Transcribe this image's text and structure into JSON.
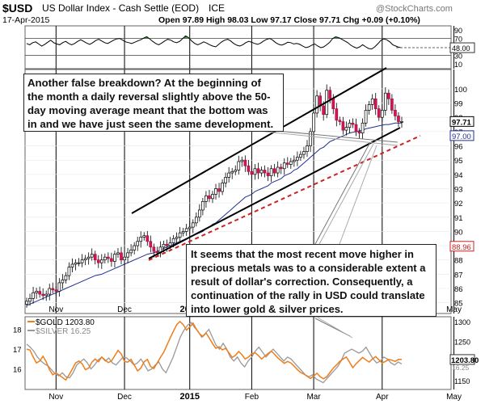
{
  "header": {
    "symbol": "$USD",
    "name": "US Dollar Index - Cash Settle (EOD)",
    "exchange": "ICE",
    "date": "17-Apr-2015",
    "ohlc_line": "Open 97.89  High 98.03  Low 97.17  Close 97.71  Chg +0.09 (+0.10%)",
    "watermark": "@StockCharts.com"
  },
  "annotations": {
    "top": "Another false breakdown? At the beginning of the month a daily reversal slightly above the 50-day moving average meant that the bottom was in and we have just seen the same development.",
    "bottom": "It seems that the most recent move higher in precious metals was to a considerable extent a result of dollar's correction. Consequently, a continuation of the rally in USD could translate into lower gold & silver prices."
  },
  "chart_data": [
    {
      "type": "line",
      "panel": "RSI",
      "ylim": [
        0,
        100
      ],
      "ticks": [
        10,
        30,
        70,
        90
      ],
      "last_value_label": "48.00",
      "levels": [
        30,
        70
      ],
      "values": [
        58,
        55,
        60,
        62,
        57,
        52,
        56,
        61,
        66,
        60,
        57,
        55,
        60,
        63,
        58,
        55,
        58,
        63,
        67,
        63,
        59,
        56,
        60,
        65,
        68,
        64,
        60,
        58,
        62,
        66,
        69,
        70,
        66,
        62,
        60,
        58,
        61,
        64,
        67,
        71,
        74,
        69,
        63,
        58,
        55,
        59,
        64,
        68,
        66,
        62,
        60,
        63,
        70,
        76,
        72,
        64,
        58,
        55,
        58,
        62,
        59,
        55,
        52,
        50,
        56,
        62,
        66,
        68,
        64,
        58,
        54,
        52,
        55,
        60,
        63,
        61,
        58,
        56,
        59,
        64,
        68,
        70,
        66,
        60,
        56,
        54,
        57,
        61,
        60,
        57,
        58,
        56,
        52,
        48,
        50,
        54,
        57,
        52,
        48,
        50,
        55,
        61,
        70,
        74,
        72,
        68,
        64,
        60,
        54,
        50,
        47,
        50,
        55,
        50,
        46,
        45,
        50,
        57,
        65,
        69,
        67,
        62,
        55,
        52,
        49,
        48
      ]
    },
    {
      "type": "candlestick",
      "panel": "price",
      "title": "$USD US Dollar Index - Cash Settle (EOD) ICE",
      "ylim": [
        84.3,
        101.3
      ],
      "y_ticks": [
        85,
        86,
        87,
        88,
        89,
        90,
        91,
        92,
        93,
        94,
        95,
        96,
        97,
        98,
        99,
        100
      ],
      "x_tick_labels": [
        "Nov",
        "Dec",
        "2015",
        "Feb",
        "Mar",
        "Apr",
        "May"
      ],
      "price_labels": [
        "97.71",
        "97.00",
        "88.96"
      ],
      "close": [
        85.1,
        85.3,
        85.7,
        85.8,
        85.6,
        85.5,
        85.6,
        86.0,
        85.9,
        85.8,
        86.4,
        86.6,
        86.9,
        87.5,
        87.7,
        87.8,
        87.8,
        88.0,
        88.1,
        88.2,
        88.4,
        88.0,
        87.8,
        88.0,
        88.2,
        88.1,
        87.9,
        88.4,
        88.5,
        88.0,
        88.2,
        88.5,
        88.7,
        89.0,
        89.3,
        89.6,
        89.7,
        89.3,
        88.9,
        88.6,
        88.5,
        88.9,
        89.1,
        89.0,
        89.2,
        89.5,
        89.6,
        89.9,
        90.0,
        90.2,
        90.3,
        90.6,
        91.0,
        91.5,
        92.1,
        92.5,
        92.3,
        92.6,
        93.0,
        92.8,
        93.4,
        93.8,
        94.1,
        94.2,
        94.3,
        94.9,
        95.0,
        94.6,
        94.2,
        94.0,
        94.4,
        94.1,
        94.3,
        94.1,
        93.9,
        94.4,
        94.1,
        94.5,
        94.4,
        94.8,
        94.7,
        94.9,
        95.0,
        95.2,
        95.4,
        95.6,
        96.0,
        97.0,
        98.3,
        99.5,
        98.8,
        98.2,
        99.9,
        99.3,
        98.6,
        97.8,
        97.7,
        97.1,
        97.3,
        97.6,
        97.5,
        97.0,
        96.9,
        97.6,
        98.5,
        98.9,
        99.3,
        98.6,
        98.0,
        98.5,
        99.7,
        99.3,
        98.5,
        98.1,
        97.7,
        97.71
      ],
      "series": [
        {
          "name": "MA(50)",
          "values": [
            84.8,
            84.9,
            85.0,
            85.1,
            85.2,
            85.3,
            85.4,
            85.5,
            85.6,
            85.7,
            85.8,
            85.9,
            86.0,
            86.1,
            86.2,
            86.3,
            86.4,
            86.5,
            86.6,
            86.7,
            86.8,
            86.9,
            86.95,
            87.0,
            87.1,
            87.2,
            87.3,
            87.4,
            87.5,
            87.6,
            87.7,
            87.8,
            87.9,
            88.0,
            88.1,
            88.2,
            88.3,
            88.4,
            88.45,
            88.5,
            88.6,
            88.7,
            88.8,
            88.9,
            89.0,
            89.1,
            89.2,
            89.3,
            89.4,
            89.5,
            89.6,
            89.7,
            89.8,
            89.9,
            90.0,
            90.2,
            90.3,
            90.5,
            90.6,
            90.8,
            91.0,
            91.2,
            91.4,
            91.6,
            91.8,
            92.0,
            92.2,
            92.4,
            92.5,
            92.6,
            92.8,
            92.9,
            93.0,
            93.1,
            93.2,
            93.4,
            93.5,
            93.6,
            93.7,
            93.9,
            94.0,
            94.1,
            94.3,
            94.4,
            94.6,
            94.8,
            95.0,
            95.2,
            95.4,
            95.6,
            95.8,
            95.9,
            96.1,
            96.3,
            96.4,
            96.5,
            96.6,
            96.7,
            96.8,
            96.9,
            96.95,
            97.0,
            97.05,
            97.1,
            97.2,
            97.25,
            97.3,
            97.35,
            97.4,
            97.45,
            97.5,
            97.5,
            97.55,
            97.6,
            97.6,
            97.6
          ]
        }
      ]
    },
    {
      "type": "line",
      "panel": "gold_silver",
      "ylim": [
        1130,
        1310
      ],
      "left_ticks": [
        16,
        17,
        18
      ],
      "right_ticks": [
        1150,
        1200,
        1250,
        1300
      ],
      "last_value_labels": [
        "1203.80",
        "16.25"
      ],
      "x_tick_labels": [
        "Nov",
        "Dec",
        "2015",
        "Feb",
        "Mar",
        "Apr",
        "May"
      ],
      "series": [
        {
          "name": "$GOLD 1203.80",
          "color": "#ef7d1a",
          "values": [
            1230,
            1228,
            1210,
            1195,
            1200,
            1212,
            1198,
            1178,
            1165,
            1170,
            1164,
            1158,
            1152,
            1165,
            1180,
            1195,
            1200,
            1193,
            1178,
            1182,
            1197,
            1205,
            1198,
            1210,
            1203,
            1196,
            1200,
            1213,
            1227,
            1218,
            1199,
            1197,
            1204,
            1190,
            1175,
            1182,
            1198,
            1204,
            1186,
            1181,
            1195,
            1209,
            1222,
            1240,
            1258,
            1276,
            1292,
            1300,
            1292,
            1278,
            1286,
            1296,
            1281,
            1269,
            1262,
            1271,
            1258,
            1244,
            1232,
            1236,
            1228,
            1232,
            1221,
            1209,
            1214,
            1224,
            1216,
            1205,
            1210,
            1218,
            1221,
            1214,
            1205,
            1212,
            1219,
            1225,
            1217,
            1208,
            1201,
            1194,
            1199,
            1195,
            1187,
            1178,
            1171,
            1167,
            1161,
            1156,
            1162,
            1169,
            1160,
            1155,
            1160,
            1171,
            1182,
            1190,
            1199,
            1205,
            1210,
            1197,
            1183,
            1193,
            1201,
            1209,
            1203,
            1197,
            1205,
            1211,
            1203,
            1195,
            1199,
            1204,
            1202,
            1199,
            1204,
            1203.8
          ]
        },
        {
          "name": "$SILVER 16.25",
          "color": "#999999",
          "values": [
            17.25,
            17.1,
            16.9,
            16.6,
            16.4,
            16.25,
            16.15,
            15.95,
            15.75,
            15.65,
            15.8,
            15.6,
            15.55,
            15.8,
            16.2,
            16.35,
            16.5,
            16.3,
            16.0,
            16.2,
            16.45,
            16.6,
            16.4,
            16.55,
            16.3,
            16.2,
            16.4,
            16.6,
            16.55,
            16.4,
            16.2,
            16.3,
            16.5,
            16.2,
            15.9,
            16.0,
            16.2,
            16.35,
            16.0,
            15.8,
            16.2,
            16.6,
            17.1,
            17.6,
            17.95,
            18.2,
            18.35,
            18.1,
            17.9,
            17.6,
            17.8,
            18.0,
            17.6,
            17.2,
            17.0,
            17.3,
            17.0,
            16.6,
            16.4,
            16.6,
            16.3,
            16.1,
            16.4,
            16.6,
            16.9,
            17.1,
            16.85,
            16.6,
            16.8,
            17.0,
            16.8,
            16.6,
            16.4,
            16.6,
            16.5,
            16.3,
            16.1,
            15.9,
            15.7,
            15.6,
            15.7,
            15.5,
            15.4,
            15.3,
            15.5,
            15.7,
            15.9,
            16.1,
            16.4,
            16.8,
            16.9,
            17.0,
            16.9,
            16.8,
            16.9,
            17.1,
            16.8,
            16.5,
            16.3,
            16.4,
            16.6,
            16.5,
            16.3,
            16.2,
            16.35,
            16.25
          ]
        }
      ]
    }
  ]
}
